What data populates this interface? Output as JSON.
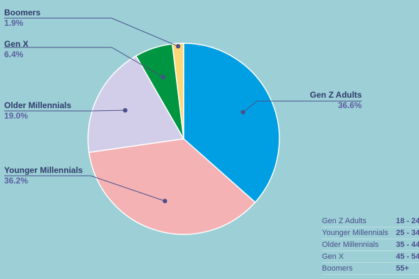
{
  "chart_data": {
    "type": "pie",
    "title": "",
    "slices": [
      {
        "name": "Gen Z Adults",
        "value": 36.6,
        "label": "36.6%",
        "color": "#009fe3"
      },
      {
        "name": "Younger Millennials",
        "value": 36.2,
        "label": "36.2%",
        "color": "#f4b2b5"
      },
      {
        "name": "Older Millennials",
        "value": 19.0,
        "label": "19.0%",
        "color": "#d2cee9"
      },
      {
        "name": "Gen X",
        "value": 6.4,
        "label": "6.4%",
        "color": "#009540"
      },
      {
        "name": "Boomers",
        "value": 1.9,
        "label": "1.9%",
        "color": "#fbd877"
      }
    ],
    "age_ranges": [
      {
        "name": "Gen Z Adults",
        "range": "18 - 24"
      },
      {
        "name": "Younger Millennials",
        "range": "25 - 34"
      },
      {
        "name": "Older Millennials",
        "range": "35 - 44"
      },
      {
        "name": "Gen X",
        "range": "45 - 54"
      },
      {
        "name": "Boomers",
        "range": "55+"
      }
    ],
    "leader_color": "#4a4f8a",
    "slice_border_color": "#ffffff"
  }
}
